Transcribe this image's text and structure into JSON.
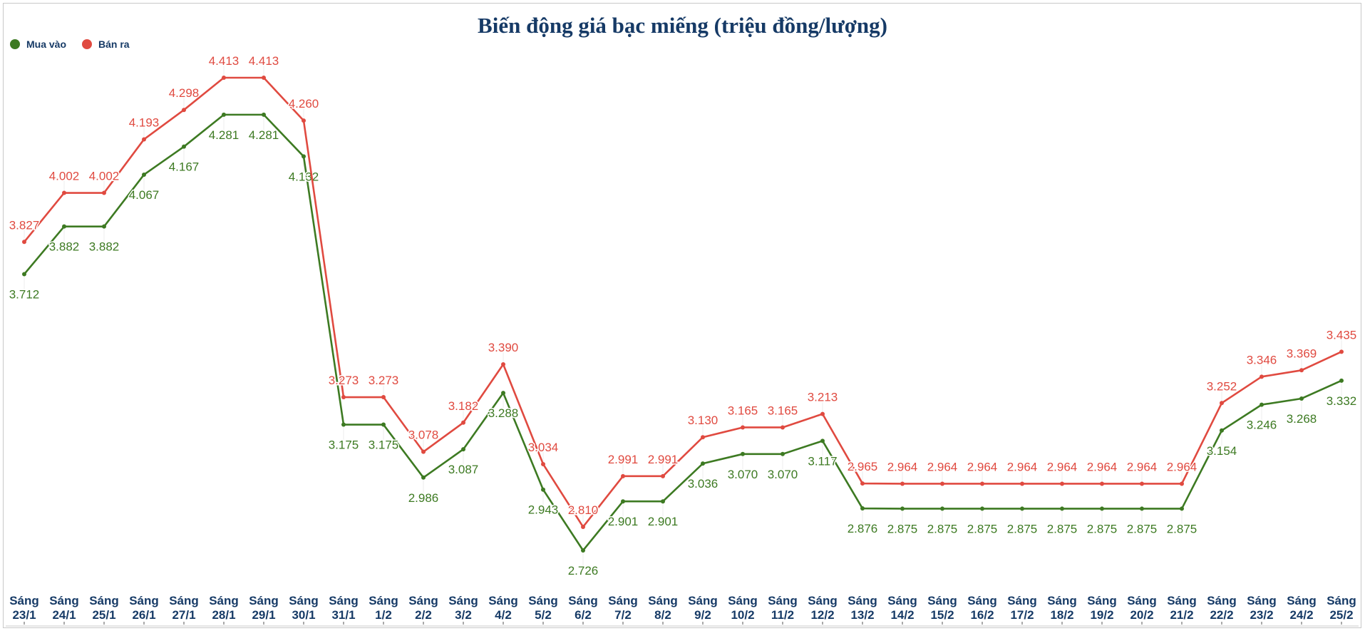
{
  "chart_data": {
    "type": "line",
    "title": "Biến động giá bạc miếng (triệu đồng/lượng)",
    "xlabel": "",
    "ylabel": "",
    "legend_position": "top-left",
    "grid": false,
    "categories": [
      [
        "Sáng",
        "23/1"
      ],
      [
        "Sáng",
        "24/1"
      ],
      [
        "Sáng",
        "25/1"
      ],
      [
        "Sáng",
        "26/1"
      ],
      [
        "Sáng",
        "27/1"
      ],
      [
        "Sáng",
        "28/1"
      ],
      [
        "Sáng",
        "29/1"
      ],
      [
        "Sáng",
        "30/1"
      ],
      [
        "Sáng",
        "31/1"
      ],
      [
        "Sáng",
        "1/2"
      ],
      [
        "Sáng",
        "2/2"
      ],
      [
        "Sáng",
        "3/2"
      ],
      [
        "Sáng",
        "4/2"
      ],
      [
        "Sáng",
        "5/2"
      ],
      [
        "Sáng",
        "6/2"
      ],
      [
        "Sáng",
        "7/2"
      ],
      [
        "Sáng",
        "8/2"
      ],
      [
        "Sáng",
        "9/2"
      ],
      [
        "Sáng",
        "10/2"
      ],
      [
        "Sáng",
        "11/2"
      ],
      [
        "Sáng",
        "12/2"
      ],
      [
        "Sáng",
        "13/2"
      ],
      [
        "Sáng",
        "14/2"
      ],
      [
        "Sáng",
        "15/2"
      ],
      [
        "Sáng",
        "16/2"
      ],
      [
        "Sáng",
        "17/2"
      ],
      [
        "Sáng",
        "18/2"
      ],
      [
        "Sáng",
        "19/2"
      ],
      [
        "Sáng",
        "20/2"
      ],
      [
        "Sáng",
        "21/2"
      ],
      [
        "Sáng",
        "22/2"
      ],
      [
        "Sáng",
        "23/2"
      ],
      [
        "Sáng",
        "24/2"
      ],
      [
        "Sáng",
        "25/2"
      ]
    ],
    "series": [
      {
        "name": "Mua vào",
        "color": "#3d7a22",
        "values": [
          3.712,
          3.882,
          3.882,
          4.067,
          4.167,
          4.281,
          4.281,
          4.132,
          3.175,
          3.175,
          2.986,
          3.087,
          3.288,
          2.943,
          2.726,
          2.901,
          2.901,
          3.036,
          3.07,
          3.07,
          3.117,
          2.876,
          2.875,
          2.875,
          2.875,
          2.875,
          2.875,
          2.875,
          2.875,
          2.875,
          3.154,
          3.246,
          3.268,
          3.332
        ]
      },
      {
        "name": "Bán ra",
        "color": "#e04a40",
        "values": [
          3.827,
          4.002,
          4.002,
          4.193,
          4.298,
          4.413,
          4.413,
          4.26,
          3.273,
          3.273,
          3.078,
          3.182,
          3.39,
          3.034,
          2.81,
          2.991,
          2.991,
          3.13,
          3.165,
          3.165,
          3.213,
          2.965,
          2.964,
          2.964,
          2.964,
          2.964,
          2.964,
          2.964,
          2.964,
          2.964,
          3.252,
          3.346,
          3.369,
          3.435
        ]
      }
    ]
  }
}
